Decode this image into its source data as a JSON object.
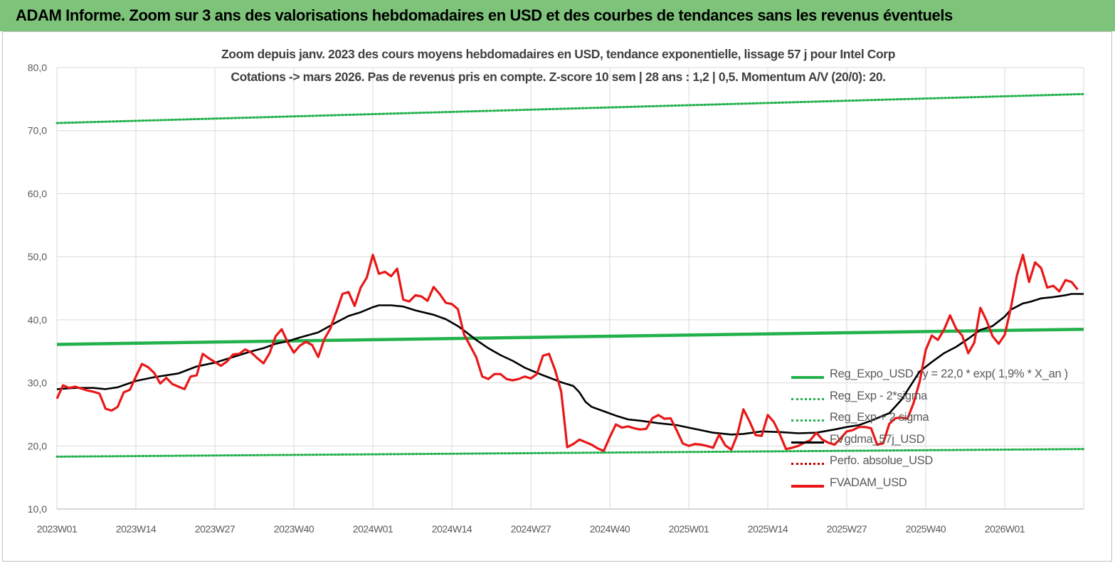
{
  "header": {
    "banner_title": "ADAM Informe. Zoom sur 3 ans des valorisations hebdomadaires en USD et des courbes de tendances sans les revenus éventuels",
    "banner_color": "#7dc47a"
  },
  "chart_data": {
    "type": "line",
    "title": "Zoom depuis janv. 2023  des cours moyens hebdomadaires en USD, tendance exponentielle, lissage 57 j pour Intel Corp",
    "subtitle": "Cotations -> mars 2026. Pas de revenus pris en  compte. Z-score 10 sem  | 28 ans : 1,2 | 0,5. Momentum A/V (20/0): 20.",
    "xlabel": "",
    "ylabel": "",
    "ylim": [
      10,
      80
    ],
    "yticks": [
      "10,0",
      "20,0",
      "30,0",
      "40,0",
      "50,0",
      "60,0",
      "70,0",
      "80,0"
    ],
    "x_tick_labels": [
      "2023W01",
      "2023W14",
      "2023W27",
      "2023W40",
      "2024W01",
      "2024W14",
      "2024W27",
      "2024W40",
      "2025W01",
      "2025W14",
      "2025W27",
      "2025W40",
      "2026W01"
    ],
    "x_weeks_range": [
      0,
      169
    ],
    "grid": "vertical and horizontal",
    "legend_position": "bottom-right",
    "series": [
      {
        "name": "Reg_Expo_USD : y = 22,0 * exp( 1,9% *  X_an )",
        "color": "#22b14c",
        "style": "solid-thick",
        "points": [
          [
            0,
            36.1
          ],
          [
            169,
            38.5
          ]
        ]
      },
      {
        "name": "Reg_Exp - 2*sigma",
        "color": "#22b14c",
        "style": "dotted",
        "points": [
          [
            0,
            18.3
          ],
          [
            169,
            19.5
          ]
        ]
      },
      {
        "name": "Reg_Exp + 2 sigma",
        "color": "#22b14c",
        "style": "dotted",
        "points": [
          [
            0,
            71.2
          ],
          [
            169,
            75.8
          ]
        ]
      },
      {
        "name": "FVgdma_57j_USD",
        "color": "#000000",
        "style": "solid",
        "points": [
          [
            0,
            29.0
          ],
          [
            3,
            29.2
          ],
          [
            6,
            29.2
          ],
          [
            8,
            29.0
          ],
          [
            10,
            29.3
          ],
          [
            13,
            30.3
          ],
          [
            16,
            30.9
          ],
          [
            20,
            31.5
          ],
          [
            23,
            32.6
          ],
          [
            26,
            33.2
          ],
          [
            29,
            34.1
          ],
          [
            32,
            35.0
          ],
          [
            34,
            35.5
          ],
          [
            36,
            36.2
          ],
          [
            38,
            36.6
          ],
          [
            40,
            37.2
          ],
          [
            43,
            38.0
          ],
          [
            46,
            39.6
          ],
          [
            48,
            40.6
          ],
          [
            50,
            41.2
          ],
          [
            52,
            42.0
          ],
          [
            53,
            42.3
          ],
          [
            55,
            42.3
          ],
          [
            57,
            42.1
          ],
          [
            59,
            41.5
          ],
          [
            62,
            40.8
          ],
          [
            64,
            40.1
          ],
          [
            66,
            39.0
          ],
          [
            67,
            38.3
          ],
          [
            69,
            36.8
          ],
          [
            71,
            35.5
          ],
          [
            73,
            34.4
          ],
          [
            75,
            33.5
          ],
          [
            77,
            32.4
          ],
          [
            80,
            31.2
          ],
          [
            83,
            30.1
          ],
          [
            85,
            29.5
          ],
          [
            86,
            28.5
          ],
          [
            87,
            27.0
          ],
          [
            88,
            26.2
          ],
          [
            90,
            25.5
          ],
          [
            92,
            24.8
          ],
          [
            94,
            24.2
          ],
          [
            96,
            24.0
          ],
          [
            99,
            23.6
          ],
          [
            102,
            23.3
          ],
          [
            104,
            22.9
          ],
          [
            106,
            22.5
          ],
          [
            108,
            22.1
          ],
          [
            111,
            21.8
          ],
          [
            113,
            21.9
          ],
          [
            116,
            22.3
          ],
          [
            119,
            22.2
          ],
          [
            122,
            22.0
          ],
          [
            125,
            22.1
          ],
          [
            128,
            22.6
          ],
          [
            130,
            23.0
          ],
          [
            132,
            23.3
          ],
          [
            134,
            24.0
          ],
          [
            137,
            25.2
          ],
          [
            139,
            27.3
          ],
          [
            141,
            30.3
          ],
          [
            142,
            31.8
          ],
          [
            144,
            33.3
          ],
          [
            146,
            34.7
          ],
          [
            148,
            35.7
          ],
          [
            150,
            37.0
          ],
          [
            152,
            38.4
          ],
          [
            154,
            39.0
          ],
          [
            156,
            40.5
          ],
          [
            157,
            41.6
          ],
          [
            159,
            42.6
          ],
          [
            160,
            42.8
          ],
          [
            162,
            43.4
          ],
          [
            164,
            43.6
          ],
          [
            166,
            43.9
          ],
          [
            167,
            44.1
          ],
          [
            169,
            44.1
          ]
        ]
      },
      {
        "name": "Perfo. absolue_USD",
        "color": "#c00000",
        "style": "dotted",
        "points": []
      },
      {
        "name": "FVADAM_USD",
        "color": "#e81717",
        "style": "solid-thick",
        "points": [
          [
            0,
            27.5
          ],
          [
            1,
            29.6
          ],
          [
            2,
            29.2
          ],
          [
            3,
            29.4
          ],
          [
            4,
            29.1
          ],
          [
            5,
            28.8
          ],
          [
            6,
            28.6
          ],
          [
            7,
            28.3
          ],
          [
            8,
            25.9
          ],
          [
            9,
            25.6
          ],
          [
            10,
            26.2
          ],
          [
            11,
            28.5
          ],
          [
            12,
            28.9
          ],
          [
            13,
            31.0
          ],
          [
            14,
            33.0
          ],
          [
            15,
            32.5
          ],
          [
            16,
            31.6
          ],
          [
            17,
            29.9
          ],
          [
            18,
            30.8
          ],
          [
            19,
            29.8
          ],
          [
            20,
            29.4
          ],
          [
            21,
            29.0
          ],
          [
            22,
            31.0
          ],
          [
            23,
            31.2
          ],
          [
            24,
            34.6
          ],
          [
            25,
            33.9
          ],
          [
            26,
            33.3
          ],
          [
            27,
            32.7
          ],
          [
            28,
            33.4
          ],
          [
            29,
            34.5
          ],
          [
            30,
            34.6
          ],
          [
            31,
            35.3
          ],
          [
            32,
            34.8
          ],
          [
            33,
            33.9
          ],
          [
            34,
            33.1
          ],
          [
            35,
            34.7
          ],
          [
            36,
            37.4
          ],
          [
            37,
            38.5
          ],
          [
            38,
            36.4
          ],
          [
            39,
            34.8
          ],
          [
            40,
            35.9
          ],
          [
            41,
            36.5
          ],
          [
            42,
            36.0
          ],
          [
            43,
            34.1
          ],
          [
            44,
            36.9
          ],
          [
            45,
            38.6
          ],
          [
            46,
            41.3
          ],
          [
            47,
            44.1
          ],
          [
            48,
            44.4
          ],
          [
            49,
            42.2
          ],
          [
            50,
            45.1
          ],
          [
            51,
            46.7
          ],
          [
            52,
            50.3
          ],
          [
            53,
            47.3
          ],
          [
            54,
            47.6
          ],
          [
            55,
            46.9
          ],
          [
            56,
            48.1
          ],
          [
            57,
            43.2
          ],
          [
            58,
            42.9
          ],
          [
            59,
            43.9
          ],
          [
            60,
            43.7
          ],
          [
            61,
            43.0
          ],
          [
            62,
            45.2
          ],
          [
            63,
            44.1
          ],
          [
            64,
            42.7
          ],
          [
            65,
            42.5
          ],
          [
            66,
            41.7
          ],
          [
            67,
            37.7
          ],
          [
            68,
            35.9
          ],
          [
            69,
            34.1
          ],
          [
            70,
            31.0
          ],
          [
            71,
            30.6
          ],
          [
            72,
            31.4
          ],
          [
            73,
            31.4
          ],
          [
            74,
            30.6
          ],
          [
            75,
            30.4
          ],
          [
            76,
            30.6
          ],
          [
            77,
            31.0
          ],
          [
            78,
            30.7
          ],
          [
            79,
            31.4
          ],
          [
            80,
            34.3
          ],
          [
            81,
            34.6
          ],
          [
            82,
            32.0
          ],
          [
            83,
            28.6
          ],
          [
            84,
            19.8
          ],
          [
            85,
            20.3
          ],
          [
            86,
            21.0
          ],
          [
            87,
            20.6
          ],
          [
            88,
            20.2
          ],
          [
            89,
            19.6
          ],
          [
            90,
            19.2
          ],
          [
            91,
            21.4
          ],
          [
            92,
            23.4
          ],
          [
            93,
            22.9
          ],
          [
            94,
            23.1
          ],
          [
            95,
            22.8
          ],
          [
            96,
            22.6
          ],
          [
            97,
            22.7
          ],
          [
            98,
            24.4
          ],
          [
            99,
            24.9
          ],
          [
            100,
            24.3
          ],
          [
            101,
            24.4
          ],
          [
            102,
            22.5
          ],
          [
            103,
            20.4
          ],
          [
            104,
            20.0
          ],
          [
            105,
            20.3
          ],
          [
            106,
            20.2
          ],
          [
            107,
            20.0
          ],
          [
            108,
            19.7
          ],
          [
            109,
            21.8
          ],
          [
            110,
            20.1
          ],
          [
            111,
            19.4
          ],
          [
            112,
            21.8
          ],
          [
            113,
            25.8
          ],
          [
            114,
            23.9
          ],
          [
            115,
            21.7
          ],
          [
            116,
            21.6
          ],
          [
            117,
            24.9
          ],
          [
            118,
            23.8
          ],
          [
            119,
            21.8
          ],
          [
            120,
            19.5
          ],
          [
            121,
            19.7
          ],
          [
            122,
            20.0
          ],
          [
            123,
            20.5
          ],
          [
            124,
            20.9
          ],
          [
            125,
            22.1
          ],
          [
            126,
            21.0
          ],
          [
            127,
            20.5
          ],
          [
            128,
            20.2
          ],
          [
            129,
            21.2
          ],
          [
            130,
            22.3
          ],
          [
            131,
            22.5
          ],
          [
            132,
            23.0
          ],
          [
            133,
            23.0
          ],
          [
            134,
            22.8
          ],
          [
            135,
            20.2
          ],
          [
            136,
            20.4
          ],
          [
            137,
            23.5
          ],
          [
            138,
            24.4
          ],
          [
            139,
            24.5
          ],
          [
            140,
            24.3
          ],
          [
            141,
            26.8
          ],
          [
            142,
            30.2
          ],
          [
            143,
            35.2
          ],
          [
            144,
            37.5
          ],
          [
            145,
            36.8
          ],
          [
            146,
            38.4
          ],
          [
            147,
            40.7
          ],
          [
            148,
            38.6
          ],
          [
            149,
            37.5
          ],
          [
            150,
            34.7
          ],
          [
            151,
            36.4
          ],
          [
            152,
            41.9
          ],
          [
            153,
            39.9
          ],
          [
            154,
            37.4
          ],
          [
            155,
            36.2
          ],
          [
            156,
            37.6
          ],
          [
            157,
            41.8
          ],
          [
            158,
            47.0
          ],
          [
            159,
            50.3
          ],
          [
            160,
            46.0
          ],
          [
            161,
            49.1
          ],
          [
            162,
            48.2
          ],
          [
            163,
            45.1
          ],
          [
            164,
            45.4
          ],
          [
            165,
            44.5
          ],
          [
            166,
            46.3
          ],
          [
            167,
            46.0
          ],
          [
            168,
            44.8
          ]
        ]
      }
    ]
  }
}
